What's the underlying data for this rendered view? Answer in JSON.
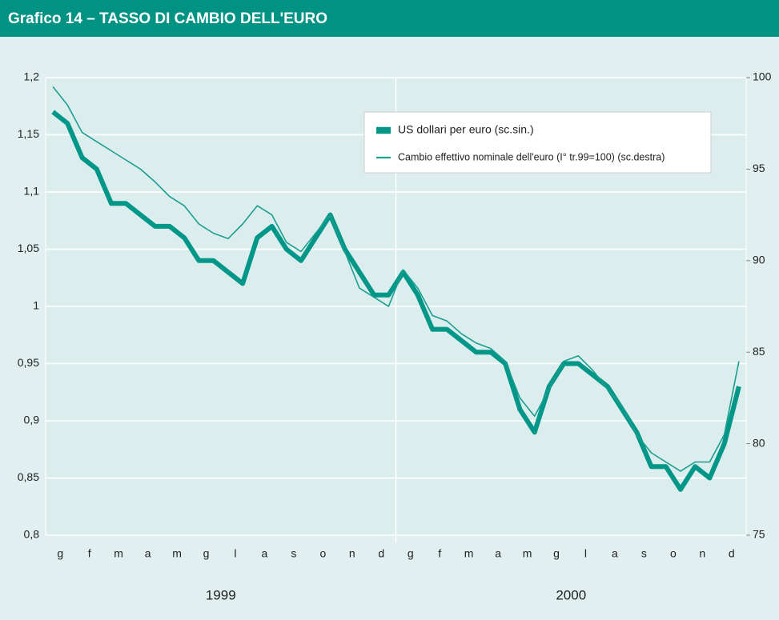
{
  "chart_data": {
    "type": "line",
    "title": "Grafico 14 – TASSO DI CAMBIO DELL'EURO",
    "categories": [
      "g",
      null,
      "f",
      null,
      "m",
      null,
      "a",
      null,
      "m",
      null,
      "g",
      null,
      "l",
      null,
      "a",
      null,
      "s",
      null,
      "o",
      null,
      "n",
      null,
      "d",
      null,
      "g",
      null,
      "f",
      null,
      "m",
      null,
      "a",
      null,
      "m",
      null,
      "g",
      null,
      "l",
      null,
      "a",
      null,
      "s",
      null,
      "o",
      null,
      "n",
      null,
      "d",
      null
    ],
    "x_group_labels": [
      "1999",
      "2000"
    ],
    "series": [
      {
        "name": "US dollari per euro (sc.sin.)",
        "color": "#009688",
        "width": 6,
        "values": [
          1.17,
          1.16,
          1.13,
          1.12,
          1.09,
          1.09,
          1.08,
          1.07,
          1.07,
          1.06,
          1.04,
          1.04,
          1.03,
          1.02,
          1.06,
          1.07,
          1.05,
          1.04,
          1.06,
          1.08,
          1.05,
          1.03,
          1.01,
          1.01,
          1.03,
          1.01,
          0.98,
          0.98,
          0.97,
          0.96,
          0.96,
          0.95,
          0.91,
          0.89,
          0.93,
          0.95,
          0.95,
          0.94,
          0.93,
          0.91,
          0.89,
          0.86,
          0.86,
          0.84,
          0.86,
          0.85,
          0.88,
          0.93
        ]
      },
      {
        "name": "Cambio effettivo nominale dell'euro (I° tr.99=100) (sc.destra)",
        "color": "#1a9e8f",
        "width": 1.6,
        "axis": "y2",
        "values": [
          99.5,
          98.5,
          97,
          96.5,
          96,
          95.5,
          95,
          94.3,
          93.5,
          93,
          92,
          91.5,
          91.2,
          92,
          93,
          92.5,
          91,
          90.5,
          91.5,
          92.5,
          90.5,
          88.5,
          88,
          87.5,
          89.5,
          88.5,
          87,
          86.7,
          86,
          85.5,
          85.2,
          84.5,
          82.5,
          81.5,
          83,
          84.5,
          84.8,
          84,
          83,
          82,
          80.5,
          79.5,
          79,
          78.5,
          79,
          79,
          80.5,
          84.5
        ]
      }
    ],
    "ylim": [
      0.8,
      1.2
    ],
    "yticks": [
      {
        "value": 0.8,
        "label": "0,8"
      },
      {
        "value": 0.85,
        "label": "0,85"
      },
      {
        "value": 0.9,
        "label": "0,9"
      },
      {
        "value": 0.95,
        "label": "0,95"
      },
      1,
      {
        "value": 1.05,
        "label": "1,05"
      },
      {
        "value": 1.1,
        "label": "1,1"
      },
      {
        "value": 1.15,
        "label": "1,15"
      },
      {
        "value": 1.2,
        "label": "1,2"
      }
    ],
    "y2lim": [
      75,
      100
    ],
    "y2ticks": [
      75,
      80,
      85,
      90,
      95,
      100
    ],
    "grid": true
  }
}
